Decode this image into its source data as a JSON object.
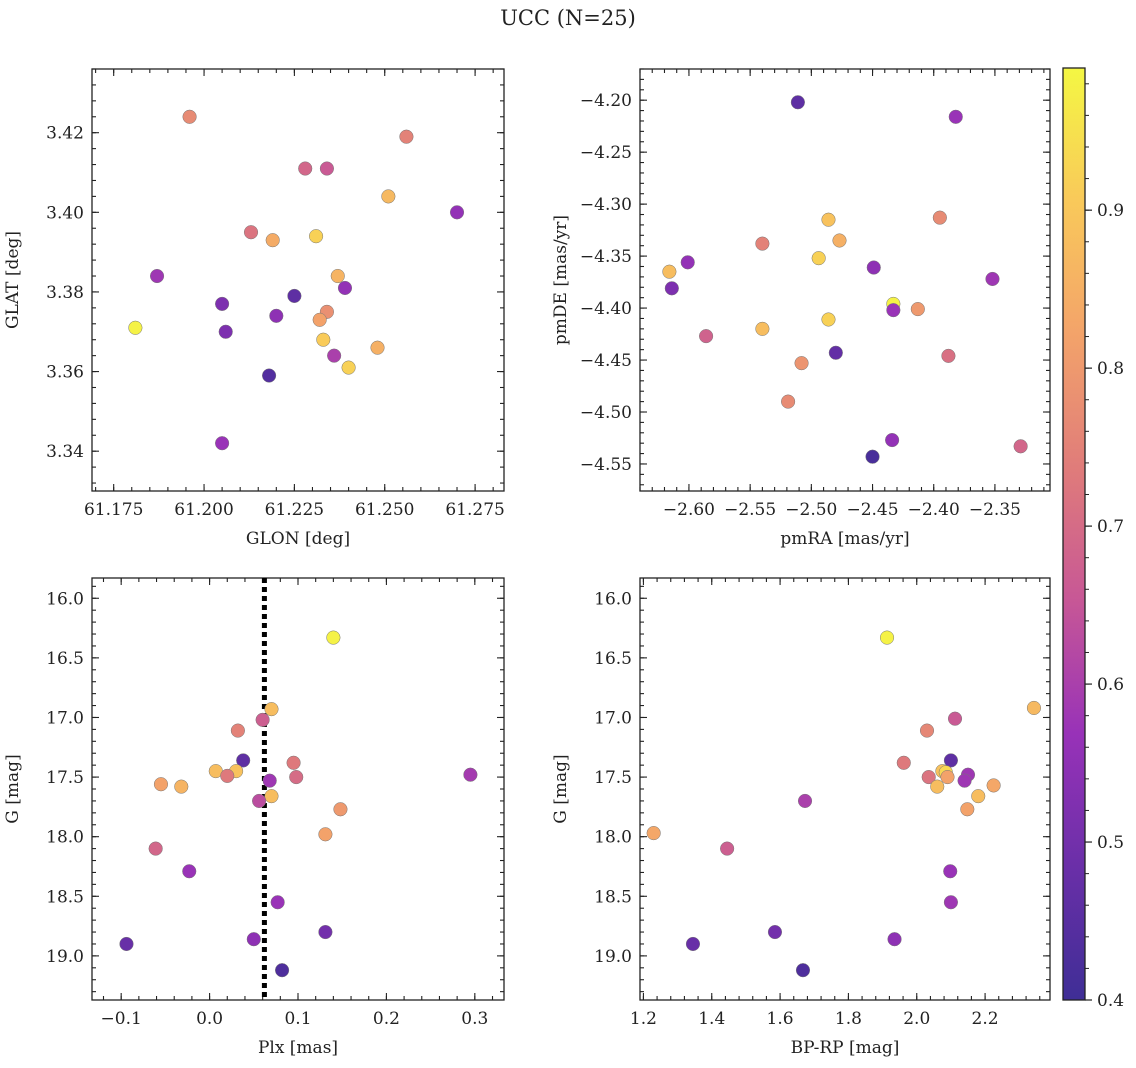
{
  "figure": {
    "title": "UCC (N=25)"
  },
  "colormap": {
    "name": "plasma",
    "stops": [
      "#3f2e96",
      "#6a2fa8",
      "#9832b8",
      "#c75796",
      "#e07c7a",
      "#f3a36a",
      "#f9c95a",
      "#f4f743"
    ],
    "min": 0.4,
    "max": 0.99,
    "ticks": [
      "0.4",
      "0.5",
      "0.6",
      "0.7",
      "0.8",
      "0.9"
    ],
    "tick_values": [
      0.4,
      0.5,
      0.6,
      0.7,
      0.8,
      0.9
    ]
  },
  "chart_data": [
    {
      "type": "scatter",
      "xlabel": "GLON [deg]",
      "ylabel": "GLAT [deg]",
      "xlim": [
        61.169,
        61.283
      ],
      "ylim": [
        3.33,
        3.436
      ],
      "xticks": [
        "61.175",
        "61.200",
        "61.225",
        "61.250",
        "61.275"
      ],
      "xtick_values": [
        61.175,
        61.2,
        61.225,
        61.25,
        61.275
      ],
      "yticks": [
        "3.34",
        "3.36",
        "3.38",
        "3.40",
        "3.42"
      ],
      "ytick_values": [
        3.34,
        3.36,
        3.38,
        3.4,
        3.42
      ],
      "vline": null,
      "points": [
        {
          "x": 61.196,
          "y": 3.424,
          "c": 0.77
        },
        {
          "x": 61.256,
          "y": 3.419,
          "c": 0.75
        },
        {
          "x": 61.228,
          "y": 3.411,
          "c": 0.69
        },
        {
          "x": 61.234,
          "y": 3.411,
          "c": 0.66
        },
        {
          "x": 61.251,
          "y": 3.404,
          "c": 0.87
        },
        {
          "x": 61.27,
          "y": 3.4,
          "c": 0.56
        },
        {
          "x": 61.213,
          "y": 3.395,
          "c": 0.72
        },
        {
          "x": 61.231,
          "y": 3.394,
          "c": 0.92
        },
        {
          "x": 61.219,
          "y": 3.393,
          "c": 0.84
        },
        {
          "x": 61.237,
          "y": 3.384,
          "c": 0.86
        },
        {
          "x": 61.187,
          "y": 3.384,
          "c": 0.58
        },
        {
          "x": 61.239,
          "y": 3.381,
          "c": 0.56
        },
        {
          "x": 61.225,
          "y": 3.379,
          "c": 0.46
        },
        {
          "x": 61.205,
          "y": 3.377,
          "c": 0.52
        },
        {
          "x": 61.234,
          "y": 3.375,
          "c": 0.78
        },
        {
          "x": 61.22,
          "y": 3.374,
          "c": 0.55
        },
        {
          "x": 61.232,
          "y": 3.373,
          "c": 0.82
        },
        {
          "x": 61.181,
          "y": 3.371,
          "c": 0.98
        },
        {
          "x": 61.206,
          "y": 3.37,
          "c": 0.52
        },
        {
          "x": 61.233,
          "y": 3.368,
          "c": 0.91
        },
        {
          "x": 61.248,
          "y": 3.366,
          "c": 0.85
        },
        {
          "x": 61.236,
          "y": 3.364,
          "c": 0.6
        },
        {
          "x": 61.24,
          "y": 3.361,
          "c": 0.92
        },
        {
          "x": 61.218,
          "y": 3.359,
          "c": 0.44
        },
        {
          "x": 61.205,
          "y": 3.342,
          "c": 0.57
        }
      ]
    },
    {
      "type": "scatter",
      "xlabel": "pmRA [mas/yr]",
      "ylabel": "pmDE [mas/yr]",
      "xlim": [
        -2.64,
        -2.305
      ],
      "ylim": [
        -4.576,
        -4.17
      ],
      "xticks": [
        "−2.60",
        "−2.55",
        "−2.50",
        "−2.45",
        "−2.40",
        "−2.35"
      ],
      "xtick_values": [
        -2.6,
        -2.55,
        -2.5,
        -2.45,
        -2.4,
        -2.35
      ],
      "yticks": [
        "−4.20",
        "−4.25",
        "−4.30",
        "−4.35",
        "−4.40",
        "−4.45",
        "−4.50",
        "−4.55"
      ],
      "ytick_values": [
        -4.2,
        -4.25,
        -4.3,
        -4.35,
        -4.4,
        -4.45,
        -4.5,
        -4.55
      ],
      "vline": null,
      "points": [
        {
          "x": -2.511,
          "y": -4.202,
          "c": 0.46
        },
        {
          "x": -2.382,
          "y": -4.216,
          "c": 0.57
        },
        {
          "x": -2.395,
          "y": -4.313,
          "c": 0.77
        },
        {
          "x": -2.486,
          "y": -4.315,
          "c": 0.89
        },
        {
          "x": -2.54,
          "y": -4.338,
          "c": 0.75
        },
        {
          "x": -2.477,
          "y": -4.335,
          "c": 0.85
        },
        {
          "x": -2.494,
          "y": -4.352,
          "c": 0.92
        },
        {
          "x": -2.601,
          "y": -4.356,
          "c": 0.56
        },
        {
          "x": -2.449,
          "y": -4.361,
          "c": 0.55
        },
        {
          "x": -2.616,
          "y": -4.365,
          "c": 0.88
        },
        {
          "x": -2.352,
          "y": -4.372,
          "c": 0.58
        },
        {
          "x": -2.614,
          "y": -4.381,
          "c": 0.52
        },
        {
          "x": -2.433,
          "y": -4.396,
          "c": 0.98
        },
        {
          "x": -2.433,
          "y": -4.402,
          "c": 0.57
        },
        {
          "x": -2.413,
          "y": -4.401,
          "c": 0.8
        },
        {
          "x": -2.486,
          "y": -4.411,
          "c": 0.92
        },
        {
          "x": -2.54,
          "y": -4.42,
          "c": 0.88
        },
        {
          "x": -2.586,
          "y": -4.427,
          "c": 0.68
        },
        {
          "x": -2.48,
          "y": -4.443,
          "c": 0.47
        },
        {
          "x": -2.388,
          "y": -4.446,
          "c": 0.71
        },
        {
          "x": -2.508,
          "y": -4.453,
          "c": 0.79
        },
        {
          "x": -2.519,
          "y": -4.49,
          "c": 0.77
        },
        {
          "x": -2.434,
          "y": -4.527,
          "c": 0.56
        },
        {
          "x": -2.329,
          "y": -4.533,
          "c": 0.69
        },
        {
          "x": -2.45,
          "y": -4.543,
          "c": 0.42
        }
      ]
    },
    {
      "type": "scatter",
      "xlabel": "Plx [mas]",
      "ylabel": "G [mag]",
      "xlim": [
        -0.133,
        0.333
      ],
      "ylim": [
        19.37,
        15.83
      ],
      "xticks": [
        "−0.1",
        "0.0",
        "0.1",
        "0.2",
        "0.3"
      ],
      "xtick_values": [
        -0.1,
        0.0,
        0.1,
        0.2,
        0.3
      ],
      "yticks": [
        "16.0",
        "16.5",
        "17.0",
        "17.5",
        "18.0",
        "18.5",
        "19.0"
      ],
      "ytick_values": [
        16.0,
        16.5,
        17.0,
        17.5,
        18.0,
        18.5,
        19.0
      ],
      "vline": 0.062,
      "points": [
        {
          "x": 0.14,
          "y": 16.33,
          "c": 0.98
        },
        {
          "x": 0.07,
          "y": 16.93,
          "c": 0.88
        },
        {
          "x": 0.06,
          "y": 17.02,
          "c": 0.67
        },
        {
          "x": 0.032,
          "y": 17.11,
          "c": 0.75
        },
        {
          "x": 0.038,
          "y": 17.36,
          "c": 0.46
        },
        {
          "x": 0.095,
          "y": 17.38,
          "c": 0.73
        },
        {
          "x": 0.007,
          "y": 17.45,
          "c": 0.88
        },
        {
          "x": 0.03,
          "y": 17.45,
          "c": 0.89
        },
        {
          "x": 0.02,
          "y": 17.49,
          "c": 0.73
        },
        {
          "x": 0.295,
          "y": 17.48,
          "c": 0.59
        },
        {
          "x": 0.098,
          "y": 17.5,
          "c": 0.7
        },
        {
          "x": 0.068,
          "y": 17.53,
          "c": 0.58
        },
        {
          "x": -0.055,
          "y": 17.56,
          "c": 0.82
        },
        {
          "x": -0.032,
          "y": 17.58,
          "c": 0.86
        },
        {
          "x": 0.07,
          "y": 17.66,
          "c": 0.88
        },
        {
          "x": 0.056,
          "y": 17.7,
          "c": 0.63
        },
        {
          "x": 0.148,
          "y": 17.77,
          "c": 0.8
        },
        {
          "x": 0.131,
          "y": 17.98,
          "c": 0.82
        },
        {
          "x": -0.061,
          "y": 18.1,
          "c": 0.69
        },
        {
          "x": -0.023,
          "y": 18.29,
          "c": 0.57
        },
        {
          "x": 0.077,
          "y": 18.55,
          "c": 0.57
        },
        {
          "x": 0.131,
          "y": 18.8,
          "c": 0.5
        },
        {
          "x": 0.05,
          "y": 18.86,
          "c": 0.55
        },
        {
          "x": -0.094,
          "y": 18.9,
          "c": 0.48
        },
        {
          "x": 0.082,
          "y": 19.12,
          "c": 0.43
        }
      ]
    },
    {
      "type": "scatter",
      "xlabel": "BP-RP [mag]",
      "ylabel": "G [mag]",
      "xlim": [
        1.19,
        2.39
      ],
      "ylim": [
        19.37,
        15.83
      ],
      "xticks": [
        "1.2",
        "1.4",
        "1.6",
        "1.8",
        "2.0",
        "2.2"
      ],
      "xtick_values": [
        1.2,
        1.4,
        1.6,
        1.8,
        2.0,
        2.2
      ],
      "yticks": [
        "16.0",
        "16.5",
        "17.0",
        "17.5",
        "18.0",
        "18.5",
        "19.0"
      ],
      "ytick_values": [
        16.0,
        16.5,
        17.0,
        17.5,
        18.0,
        18.5,
        19.0
      ],
      "vline": null,
      "points": [
        {
          "x": 1.913,
          "y": 16.33,
          "c": 0.98
        },
        {
          "x": 2.343,
          "y": 16.92,
          "c": 0.87
        },
        {
          "x": 2.112,
          "y": 17.01,
          "c": 0.66
        },
        {
          "x": 2.03,
          "y": 17.11,
          "c": 0.76
        },
        {
          "x": 2.1,
          "y": 17.36,
          "c": 0.46
        },
        {
          "x": 1.962,
          "y": 17.38,
          "c": 0.73
        },
        {
          "x": 2.075,
          "y": 17.45,
          "c": 0.89
        },
        {
          "x": 2.085,
          "y": 17.46,
          "c": 0.93
        },
        {
          "x": 2.15,
          "y": 17.48,
          "c": 0.58
        },
        {
          "x": 2.035,
          "y": 17.5,
          "c": 0.72
        },
        {
          "x": 2.09,
          "y": 17.5,
          "c": 0.82
        },
        {
          "x": 2.14,
          "y": 17.53,
          "c": 0.58
        },
        {
          "x": 2.06,
          "y": 17.58,
          "c": 0.88
        },
        {
          "x": 2.225,
          "y": 17.57,
          "c": 0.83
        },
        {
          "x": 2.18,
          "y": 17.66,
          "c": 0.88
        },
        {
          "x": 1.673,
          "y": 17.7,
          "c": 0.6
        },
        {
          "x": 2.148,
          "y": 17.77,
          "c": 0.82
        },
        {
          "x": 1.23,
          "y": 17.97,
          "c": 0.83
        },
        {
          "x": 1.445,
          "y": 18.1,
          "c": 0.67
        },
        {
          "x": 2.098,
          "y": 18.29,
          "c": 0.57
        },
        {
          "x": 2.1,
          "y": 18.55,
          "c": 0.58
        },
        {
          "x": 1.585,
          "y": 18.8,
          "c": 0.5
        },
        {
          "x": 1.935,
          "y": 18.86,
          "c": 0.55
        },
        {
          "x": 1.345,
          "y": 18.9,
          "c": 0.48
        },
        {
          "x": 1.667,
          "y": 19.12,
          "c": 0.43
        }
      ]
    }
  ]
}
